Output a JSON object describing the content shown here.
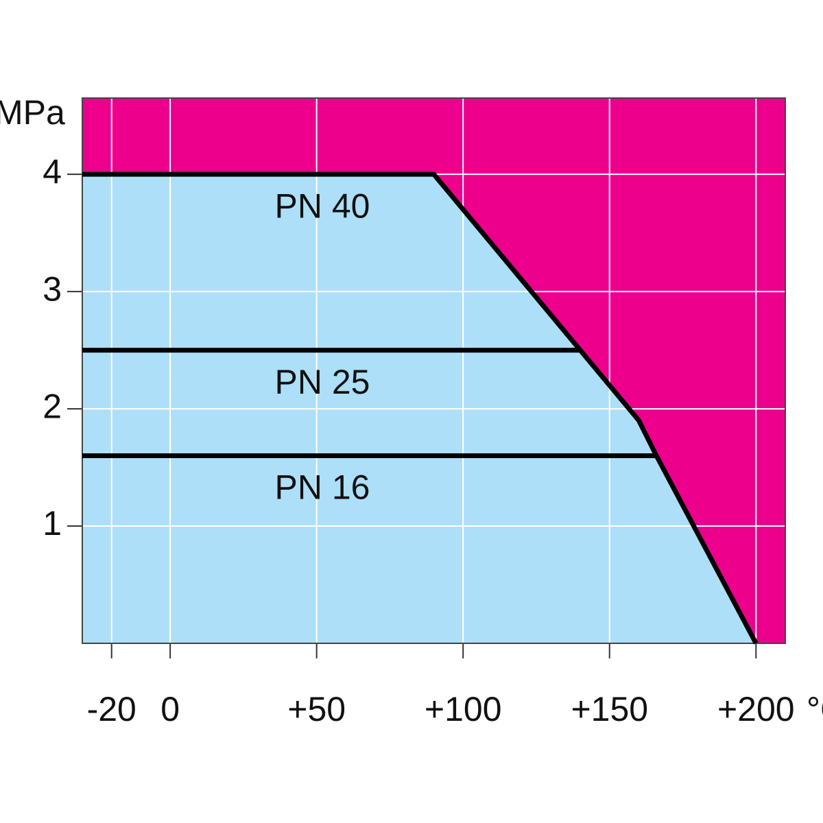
{
  "chart_data": {
    "type": "line",
    "y_label": "MPa",
    "x_label": "°C",
    "xlim": [
      -30,
      210
    ],
    "ylim": [
      0,
      4.65
    ],
    "xticks": [
      {
        "value": -20,
        "label": "-20"
      },
      0,
      {
        "value": 50,
        "label": "+50"
      },
      {
        "value": 100,
        "label": "+100"
      },
      {
        "value": 150,
        "label": "+150"
      },
      {
        "value": 200,
        "label": "+200"
      }
    ],
    "yticks": [
      1,
      2,
      3,
      4
    ],
    "grid": true,
    "background_color": "#ec008c",
    "area_color": "#addff8",
    "series": [
      {
        "name": "PN 40",
        "color": "#000000",
        "x": [
          -30,
          90,
          140,
          160,
          166,
          200
        ],
        "values": [
          4,
          4,
          2.5,
          1.9,
          1.6,
          0
        ]
      },
      {
        "name": "PN 25",
        "color": "#000000",
        "x": [
          -30,
          140
        ],
        "values": [
          2.5,
          2.5
        ]
      },
      {
        "name": "PN 16",
        "color": "#000000",
        "x": [
          -30,
          166
        ],
        "values": [
          1.6,
          1.6
        ]
      }
    ]
  }
}
